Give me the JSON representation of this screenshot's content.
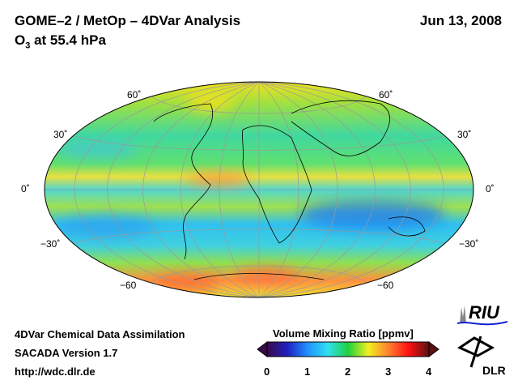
{
  "header": {
    "title": "GOME–2 / MetOp – 4DVar Analysis",
    "subtitle_prefix": "O",
    "subtitle_sub": "3",
    "subtitle_suffix": " at 55.4 hPa",
    "date": "Jun 13, 2008"
  },
  "map": {
    "projection": "Hammer",
    "lat_labels_left": [
      "60˚",
      "30˚",
      "0˚",
      "−30˚",
      "−60"
    ],
    "lat_labels_right": [
      "60˚",
      "30˚",
      "0˚",
      "−30˚",
      "−60"
    ]
  },
  "footer": {
    "line1": "4DVar Chemical Data Assimilation",
    "line2": "SACADA Version 1.7",
    "line3": "http://wdc.dlr.de"
  },
  "colorbar": {
    "title": "Volume Mixing Ratio [ppmv]",
    "ticks": [
      "0",
      "1",
      "2",
      "3",
      "4"
    ],
    "min": 0,
    "max": 4,
    "colors": [
      "#3a0a4a",
      "#2020c0",
      "#2090ff",
      "#30e0f0",
      "#20d040",
      "#f0f020",
      "#ff8030",
      "#ff1010",
      "#5a1010"
    ]
  },
  "logos": {
    "riu": "RIU",
    "dlr": "DLR"
  }
}
